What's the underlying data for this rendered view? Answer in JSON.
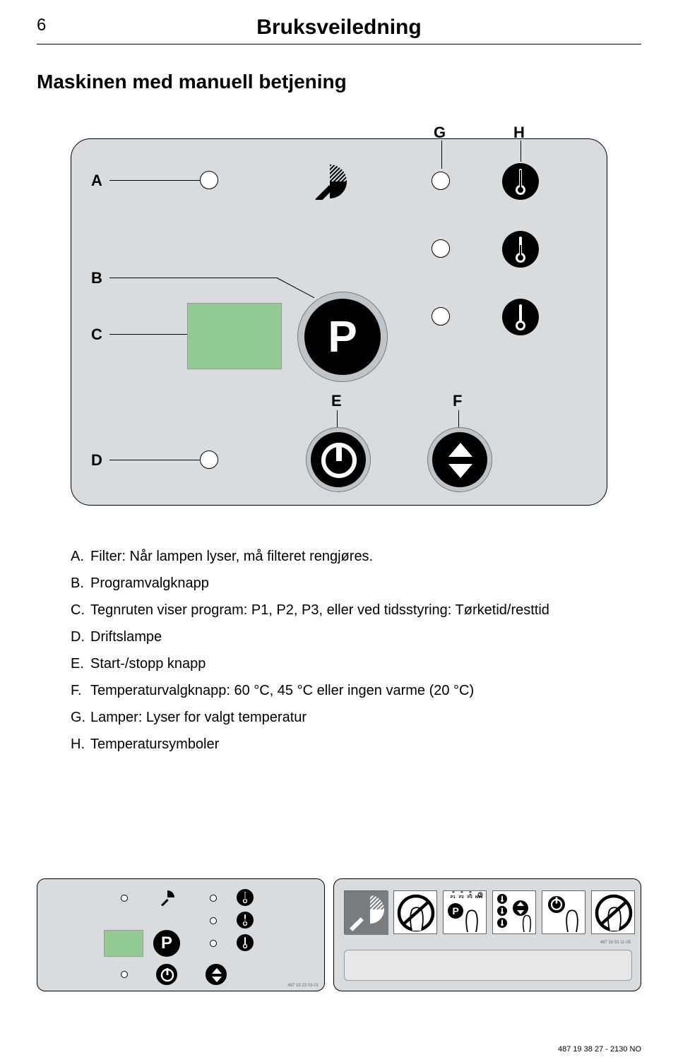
{
  "page_number": "6",
  "title": "Bruksveiledning",
  "subtitle": "Maskinen med manuell betjening",
  "labels": {
    "A": "A",
    "B": "B",
    "C": "C",
    "D": "D",
    "E": "E",
    "F": "F",
    "G": "G",
    "H": "H"
  },
  "p_button_letter": "P",
  "list": {
    "A": "Filter: Når lampen lyser, må filteret rengjøres.",
    "B": "Programvalgknapp",
    "C": "Tegnruten viser program: P1, P2, P3, eller ved tidsstyring: Tørketid/resttid",
    "D": "Driftslampe",
    "E": "Start-/stopp knapp",
    "F": "Temperaturvalgknapp: 60 °C, 45 °C eller ingen varme (20 °C)",
    "G": "Lamper: Lyser for valgt temperatur",
    "H": "Temperatursymboler"
  },
  "footer": "487 19 38 27 - 2130 NO",
  "tiny_code_left": "487 19 23 03-01",
  "tiny_code_right": "487 16 53 11-05",
  "colors": {
    "panel_bg": "#d9dcdf",
    "display_bg": "#93cc93",
    "black": "#000000",
    "white": "#ffffff"
  },
  "pictogram_p_labels": "P1 P2 P3 MIN",
  "pictogram_p_button": "P",
  "small_p_letter": "P"
}
